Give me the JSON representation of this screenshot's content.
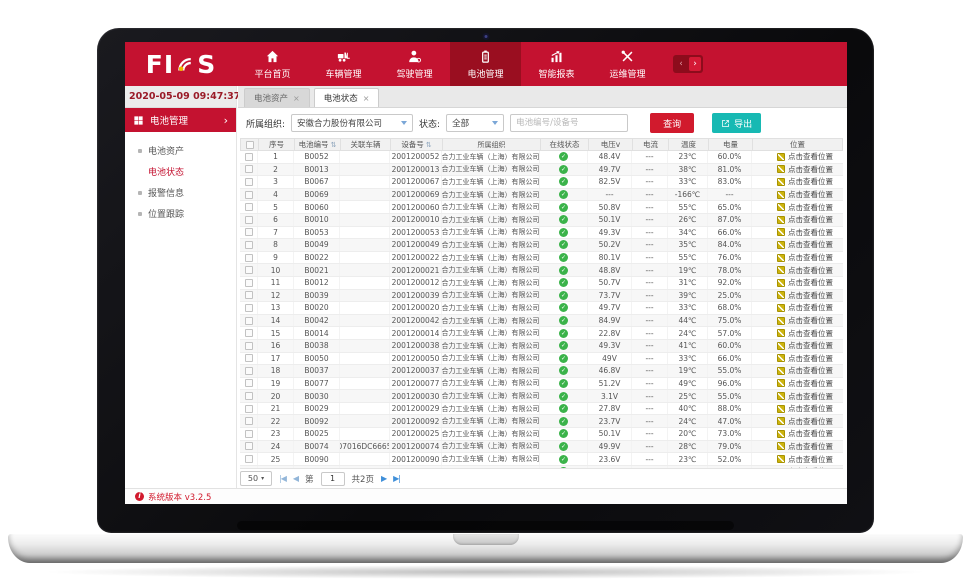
{
  "topnav": {
    "logo_part1": "FI",
    "logo_part2": "S",
    "prev_arrow": "‹",
    "next_arrow": "›",
    "items": [
      {
        "label": "平台首页",
        "icon": "home-icon",
        "active": false
      },
      {
        "label": "车辆管理",
        "icon": "forklift-icon",
        "active": false
      },
      {
        "label": "驾驶管理",
        "icon": "driver-icon",
        "active": false
      },
      {
        "label": "电池管理",
        "icon": "battery-icon",
        "active": true
      },
      {
        "label": "智能报表",
        "icon": "report-icon",
        "active": false
      },
      {
        "label": "运维管理",
        "icon": "tools-icon",
        "active": false
      }
    ]
  },
  "datetime": "2020-05-09 09:47:37",
  "sidebar": {
    "header": "电池管理",
    "chevron": "›",
    "items": [
      {
        "label": "电池资产",
        "active": false
      },
      {
        "label": "电池状态",
        "active": true
      },
      {
        "label": "报警信息",
        "active": false
      },
      {
        "label": "位置跟踪",
        "active": false
      }
    ]
  },
  "tabs": [
    {
      "label": "电池资产",
      "active": false
    },
    {
      "label": "电池状态",
      "active": true
    }
  ],
  "filters": {
    "org_label": "所属组织:",
    "org_value": "安徽合力股份有限公司",
    "status_label": "状态:",
    "status_value": "全部",
    "search_placeholder": "电池编号/设备号",
    "query_button": "查询",
    "export_button": "导出"
  },
  "table": {
    "columns": [
      "序号",
      "电池编号",
      "关联车辆",
      "设备号",
      "所属组织",
      "在线状态",
      "电压v",
      "电流",
      "温度",
      "电量",
      "位置"
    ],
    "org": "合力工业车辆（上海）有限公司",
    "location_text": "点击查看位置",
    "rows": [
      {
        "seq": "1",
        "battery": "B0052",
        "vehicle": "",
        "device": "2001200052",
        "voltage": "48.4V",
        "current": "---",
        "temp": "23℃",
        "charge": "60.0%"
      },
      {
        "seq": "2",
        "battery": "B0013",
        "vehicle": "",
        "device": "2001200013",
        "voltage": "49.7V",
        "current": "---",
        "temp": "38℃",
        "charge": "81.0%"
      },
      {
        "seq": "3",
        "battery": "B0067",
        "vehicle": "",
        "device": "2001200067",
        "voltage": "82.5V",
        "current": "---",
        "temp": "33℃",
        "charge": "83.0%"
      },
      {
        "seq": "4",
        "battery": "B0069",
        "vehicle": "",
        "device": "2001200069",
        "voltage": "---",
        "current": "---",
        "temp": "-166℃",
        "charge": "---"
      },
      {
        "seq": "5",
        "battery": "B0060",
        "vehicle": "",
        "device": "2001200060",
        "voltage": "50.8V",
        "current": "---",
        "temp": "55℃",
        "charge": "65.0%"
      },
      {
        "seq": "6",
        "battery": "B0010",
        "vehicle": "",
        "device": "2001200010",
        "voltage": "50.1V",
        "current": "---",
        "temp": "26℃",
        "charge": "87.0%"
      },
      {
        "seq": "7",
        "battery": "B0053",
        "vehicle": "",
        "device": "2001200053",
        "voltage": "49.3V",
        "current": "---",
        "temp": "34℃",
        "charge": "66.0%"
      },
      {
        "seq": "8",
        "battery": "B0049",
        "vehicle": "",
        "device": "2001200049",
        "voltage": "50.2V",
        "current": "---",
        "temp": "35℃",
        "charge": "84.0%"
      },
      {
        "seq": "9",
        "battery": "B0022",
        "vehicle": "",
        "device": "2001200022",
        "voltage": "80.1V",
        "current": "---",
        "temp": "55℃",
        "charge": "76.0%"
      },
      {
        "seq": "10",
        "battery": "B0021",
        "vehicle": "",
        "device": "2001200021",
        "voltage": "48.8V",
        "current": "---",
        "temp": "19℃",
        "charge": "78.0%"
      },
      {
        "seq": "11",
        "battery": "B0012",
        "vehicle": "",
        "device": "2001200012",
        "voltage": "50.7V",
        "current": "---",
        "temp": "31℃",
        "charge": "92.0%"
      },
      {
        "seq": "12",
        "battery": "B0039",
        "vehicle": "",
        "device": "2001200039",
        "voltage": "73.7V",
        "current": "---",
        "temp": "39℃",
        "charge": "25.0%"
      },
      {
        "seq": "13",
        "battery": "B0020",
        "vehicle": "",
        "device": "2001200020",
        "voltage": "49.7V",
        "current": "---",
        "temp": "33℃",
        "charge": "68.0%"
      },
      {
        "seq": "14",
        "battery": "B0042",
        "vehicle": "",
        "device": "2001200042",
        "voltage": "84.9V",
        "current": "---",
        "temp": "44℃",
        "charge": "75.0%"
      },
      {
        "seq": "15",
        "battery": "B0014",
        "vehicle": "",
        "device": "2001200014",
        "voltage": "22.8V",
        "current": "---",
        "temp": "24℃",
        "charge": "57.0%"
      },
      {
        "seq": "16",
        "battery": "B0038",
        "vehicle": "",
        "device": "2001200038",
        "voltage": "49.3V",
        "current": "---",
        "temp": "41℃",
        "charge": "60.0%"
      },
      {
        "seq": "17",
        "battery": "B0050",
        "vehicle": "",
        "device": "2001200050",
        "voltage": "49V",
        "current": "---",
        "temp": "33℃",
        "charge": "66.0%"
      },
      {
        "seq": "18",
        "battery": "B0037",
        "vehicle": "",
        "device": "2001200037",
        "voltage": "46.8V",
        "current": "---",
        "temp": "19℃",
        "charge": "55.0%"
      },
      {
        "seq": "19",
        "battery": "B0077",
        "vehicle": "",
        "device": "2001200077",
        "voltage": "51.2V",
        "current": "---",
        "temp": "49℃",
        "charge": "96.0%"
      },
      {
        "seq": "20",
        "battery": "B0030",
        "vehicle": "",
        "device": "2001200030",
        "voltage": "3.1V",
        "current": "---",
        "temp": "25℃",
        "charge": "55.0%"
      },
      {
        "seq": "21",
        "battery": "B0029",
        "vehicle": "",
        "device": "2001200029",
        "voltage": "27.8V",
        "current": "---",
        "temp": "40℃",
        "charge": "88.0%"
      },
      {
        "seq": "22",
        "battery": "B0092",
        "vehicle": "",
        "device": "2001200092",
        "voltage": "23.7V",
        "current": "---",
        "temp": "24℃",
        "charge": "47.0%"
      },
      {
        "seq": "23",
        "battery": "B0025",
        "vehicle": "",
        "device": "2001200025",
        "voltage": "50.1V",
        "current": "---",
        "temp": "20℃",
        "charge": "73.0%"
      },
      {
        "seq": "24",
        "battery": "B0074",
        "vehicle": "07016DC6665",
        "device": "2001200074",
        "voltage": "49.9V",
        "current": "---",
        "temp": "28℃",
        "charge": "79.0%"
      },
      {
        "seq": "25",
        "battery": "B0090",
        "vehicle": "",
        "device": "2001200090",
        "voltage": "23.6V",
        "current": "---",
        "temp": "23℃",
        "charge": "52.0%"
      },
      {
        "seq": "26",
        "battery": "B0093",
        "vehicle": "",
        "device": "2001200093",
        "voltage": "48.3V",
        "current": "---",
        "temp": "21℃",
        "charge": "71.0%"
      }
    ]
  },
  "pagination": {
    "page_size": "50",
    "page_prefix": "第",
    "page_value": "1",
    "total_pages": "共2页"
  },
  "footer": {
    "version": "系统版本 v3.2.5"
  },
  "icons": {
    "collapse": "◀",
    "tab_close": "×",
    "sort": "⇅",
    "check": "✓",
    "caret_down": "▾",
    "first_page": "|◀",
    "prev_page": "◀",
    "next_page": "▶",
    "last_page": "▶|",
    "info": "i"
  },
  "colors": {
    "brand_red": "#c41230",
    "active_nav_red": "#9a0e20",
    "export_teal": "#17b9b3",
    "online_green": "#3bb34a",
    "location_yellow": "#cdb40e"
  }
}
